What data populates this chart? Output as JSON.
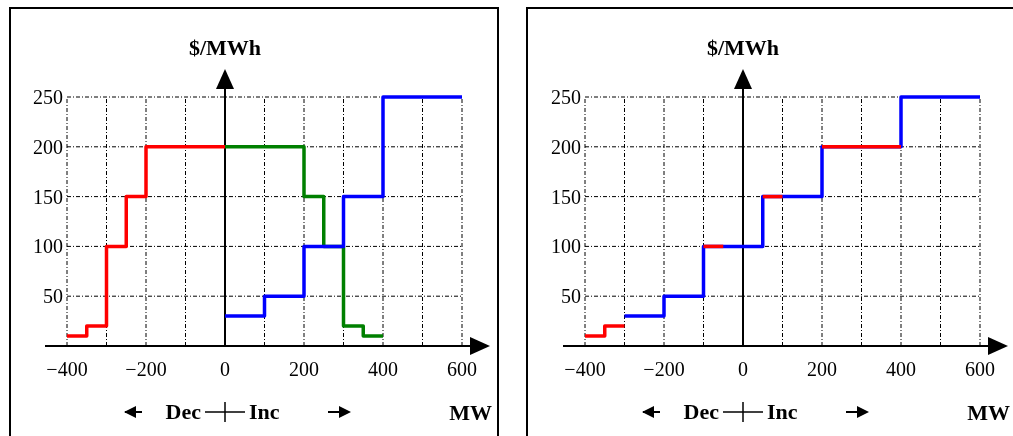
{
  "chart_data": [
    {
      "type": "step",
      "ylabel": "$/MWh",
      "xlabel": "MW",
      "annotations": [
        "Dec",
        "Inc"
      ],
      "xlim": [
        -400,
        600
      ],
      "xticks": [
        -400,
        {
          "value": -300,
          "label": null
        },
        -200,
        {
          "value": -100,
          "label": null
        },
        0,
        {
          "value": 100,
          "label": null
        },
        200,
        {
          "value": 300,
          "label": null
        },
        400,
        {
          "value": 500,
          "label": null
        },
        600
      ],
      "ylim": [
        0,
        250
      ],
      "yticks": [
        50,
        100,
        150,
        200,
        250
      ],
      "grid": true,
      "series": [
        {
          "color": "#ff0000",
          "x": [
            -400,
            -350,
            -300,
            -250,
            -200,
            0
          ],
          "values": [
            10,
            20,
            100,
            150,
            200,
            200
          ]
        },
        {
          "color": "#008000",
          "x": [
            0,
            200,
            250,
            300,
            350,
            400
          ],
          "values": [
            200,
            150,
            100,
            20,
            10,
            10
          ]
        },
        {
          "color": "#0000ff",
          "x": [
            0,
            100,
            200,
            300,
            400,
            600
          ],
          "values": [
            30,
            50,
            100,
            150,
            250,
            250
          ]
        }
      ]
    },
    {
      "type": "step",
      "ylabel": "$/MWh",
      "xlabel": "MW",
      "annotations": [
        "Dec",
        "Inc"
      ],
      "xlim": [
        -400,
        600
      ],
      "xticks": [
        -400,
        {
          "value": -300,
          "label": null
        },
        -200,
        {
          "value": -100,
          "label": null
        },
        0,
        {
          "value": 100,
          "label": null
        },
        200,
        {
          "value": 300,
          "label": null
        },
        400,
        {
          "value": 500,
          "label": null
        },
        600
      ],
      "ylim": [
        0,
        250
      ],
      "yticks": [
        50,
        100,
        150,
        200,
        250
      ],
      "grid": true,
      "series": [
        {
          "color": "#0000ff",
          "x": [
            -300,
            -200,
            -100,
            50,
            200,
            400,
            600
          ],
          "values": [
            30,
            50,
            100,
            150,
            200,
            250,
            250
          ]
        },
        {
          "color": "#ff0000",
          "x": [
            -400,
            -350,
            -300
          ],
          "values": [
            10,
            20,
            20
          ]
        },
        {
          "color": "#ff0000",
          "x": [
            -100,
            -50
          ],
          "values": [
            100,
            100
          ]
        },
        {
          "color": "#ff0000",
          "x": [
            50,
            100
          ],
          "values": [
            150,
            150
          ]
        },
        {
          "color": "#ff0000",
          "x": [
            200,
            400
          ],
          "values": [
            200,
            200
          ]
        }
      ]
    }
  ]
}
